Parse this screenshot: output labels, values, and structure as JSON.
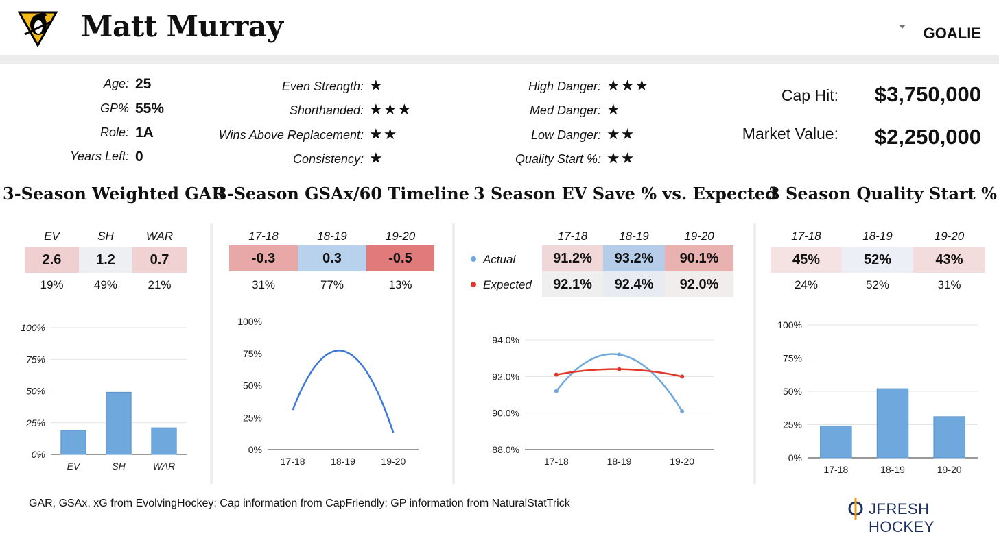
{
  "header": {
    "player_name": "Matt Murray",
    "position": "GOALIE"
  },
  "bio": [
    {
      "label": "Age:",
      "value": "25"
    },
    {
      "label": "GP%",
      "value": "55%"
    },
    {
      "label": "Role:",
      "value": "1A"
    },
    {
      "label": "Years Left:",
      "value": "0"
    }
  ],
  "ratings_left": [
    {
      "label": "Even Strength:",
      "stars": "★"
    },
    {
      "label": "Shorthanded:",
      "stars": "★★★"
    },
    {
      "label": "Wins Above Replacement:",
      "stars": "★★"
    },
    {
      "label": "Consistency:",
      "stars": "★"
    }
  ],
  "ratings_right": [
    {
      "label": "High Danger:",
      "stars": "★★★"
    },
    {
      "label": "Med Danger:",
      "stars": "★"
    },
    {
      "label": "Low Danger:",
      "stars": "★★"
    },
    {
      "label": "Quality Start %:",
      "stars": "★★"
    }
  ],
  "contract": {
    "cap_hit_label": "Cap Hit:",
    "cap_hit": "$3,750,000",
    "market_label": "Market Value:",
    "market_value": "$2,250,000"
  },
  "panels": {
    "gar": {
      "title": "3-Season Weighted GAR",
      "headers": [
        "EV",
        "SH",
        "WAR"
      ],
      "values": [
        "2.6",
        "1.2",
        "0.7"
      ],
      "cell_colors": [
        "#efcfcf",
        "#eeeff3",
        "#f0d2d2"
      ],
      "percentiles": [
        "19%",
        "49%",
        "21%"
      ]
    },
    "gsax": {
      "title": "3-Season GSAx/60 Timeline",
      "headers": [
        "17-18",
        "18-19",
        "19-20"
      ],
      "values": [
        "-0.3",
        "0.3",
        "-0.5"
      ],
      "cell_colors": [
        "#e8a8a8",
        "#b8d1ec",
        "#e17b7b"
      ],
      "percentiles": [
        "31%",
        "77%",
        "13%"
      ]
    },
    "sv": {
      "title": "3 Season EV Save % vs. Expected",
      "headers": [
        "17-18",
        "18-19",
        "19-20"
      ],
      "row_labels": [
        "Actual",
        "Expected"
      ],
      "actual": [
        "91.2%",
        "93.2%",
        "90.1%"
      ],
      "expected": [
        "92.1%",
        "92.4%",
        "92.0%"
      ],
      "actual_colors": [
        "#f1d8d8",
        "#b5cde9",
        "#eab1b1"
      ],
      "expected_colors": [
        "#efefef",
        "#e8ecf2",
        "#f1eded"
      ]
    },
    "qs": {
      "title": "3 Season Quality Start %",
      "headers": [
        "17-18",
        "18-19",
        "19-20"
      ],
      "values": [
        "45%",
        "52%",
        "43%"
      ],
      "cell_colors": [
        "#f5e3e3",
        "#eceff5",
        "#f2dcdc"
      ],
      "percentiles": [
        "24%",
        "52%",
        "31%"
      ]
    }
  },
  "chart_data": [
    {
      "type": "bar",
      "categories": [
        "EV",
        "SH",
        "WAR"
      ],
      "values": [
        19,
        49,
        21
      ],
      "ylim": [
        0,
        100
      ],
      "yticks": [
        "0%",
        "25%",
        "50%",
        "75%",
        "100%"
      ],
      "color": "#6fa8dc",
      "grid": true
    },
    {
      "type": "line",
      "categories": [
        "17-18",
        "18-19",
        "19-20"
      ],
      "values": [
        31,
        77,
        13
      ],
      "ylim": [
        0,
        100
      ],
      "yticks": [
        "0%",
        "25%",
        "50%",
        "75%",
        "100%"
      ],
      "color": "#3c78d8",
      "grid": false
    },
    {
      "type": "line",
      "categories": [
        "17-18",
        "18-19",
        "19-20"
      ],
      "ylim": [
        88,
        94
      ],
      "yticks": [
        "88.0%",
        "90.0%",
        "92.0%",
        "94.0%"
      ],
      "grid": true,
      "series": [
        {
          "name": "Actual",
          "values": [
            91.2,
            93.2,
            90.1
          ],
          "color": "#6fa8dc"
        },
        {
          "name": "Expected",
          "values": [
            92.1,
            92.4,
            92.0
          ],
          "color": "#e0392b"
        }
      ]
    },
    {
      "type": "bar",
      "categories": [
        "17-18",
        "18-19",
        "19-20"
      ],
      "values": [
        24,
        52,
        31
      ],
      "ylim": [
        0,
        100
      ],
      "yticks": [
        "0%",
        "25%",
        "50%",
        "75%",
        "100%"
      ],
      "color": "#6fa8dc",
      "grid": true
    }
  ],
  "footer": {
    "source": "GAR, GSAx, xG from EvolvingHockey; Cap information from CapFriendly; GP information from NaturalStatTrick",
    "brand": "JFRESH HOCKEY"
  }
}
